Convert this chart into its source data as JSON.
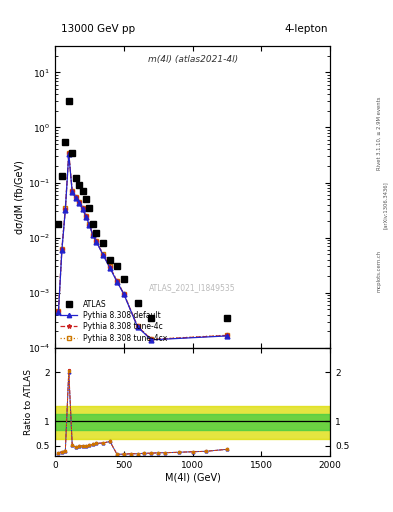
{
  "title_top": "13000 GeV pp",
  "title_right": "4-lepton",
  "plot_label": "m(4l) (atlas2021-4l)",
  "watermark": "ATLAS_2021_I1849535",
  "ylabel_main": "dσ/dM (fb/GeV)",
  "ylabel_ratio": "Ratio to ATLAS",
  "xlabel": "M(4l) (GeV)",
  "right_label_top": "Rivet 3.1.10, ≥ 2.9M events",
  "right_label_mid": "[arXiv:1306.3436]",
  "right_label_bot": "mcplots.cern.ch",
  "xlim": [
    0,
    2000
  ],
  "ylim_main": [
    0.0001,
    30
  ],
  "ylim_ratio": [
    0.3,
    2.5
  ],
  "atlas_data_x": [
    25,
    50,
    75,
    100,
    125,
    150,
    175,
    200,
    225,
    250,
    275,
    300,
    350,
    400,
    450,
    500,
    600,
    700,
    1250
  ],
  "atlas_data_y": [
    0.018,
    0.13,
    0.55,
    3.0,
    0.35,
    0.12,
    0.09,
    0.07,
    0.05,
    0.035,
    0.018,
    0.012,
    0.008,
    0.004,
    0.003,
    0.0018,
    0.00065,
    0.00035,
    0.00035
  ],
  "pythia_default_x": [
    25,
    50,
    75,
    100,
    125,
    150,
    175,
    200,
    225,
    250,
    275,
    300,
    350,
    400,
    450,
    500,
    600,
    700,
    1250
  ],
  "pythia_default_y": [
    0.00045,
    0.006,
    0.032,
    0.33,
    0.068,
    0.053,
    0.043,
    0.033,
    0.024,
    0.017,
    0.011,
    0.0085,
    0.0048,
    0.0028,
    0.0016,
    0.00095,
    0.00024,
    0.00014,
    0.000165
  ],
  "pythia_4c_x": [
    25,
    50,
    75,
    100,
    125,
    150,
    175,
    200,
    225,
    250,
    275,
    300,
    350,
    400,
    450,
    500,
    600,
    700,
    1250
  ],
  "pythia_4c_y": [
    0.00046,
    0.0062,
    0.033,
    0.34,
    0.069,
    0.054,
    0.044,
    0.034,
    0.0245,
    0.0172,
    0.0112,
    0.0086,
    0.0049,
    0.0029,
    0.00162,
    0.00096,
    0.000245,
    0.000142,
    0.000168
  ],
  "pythia_4cx_x": [
    25,
    50,
    75,
    100,
    125,
    150,
    175,
    200,
    225,
    250,
    275,
    300,
    350,
    400,
    450,
    500,
    600,
    700,
    1250
  ],
  "pythia_4cx_y": [
    0.00047,
    0.0063,
    0.034,
    0.345,
    0.0695,
    0.0545,
    0.0445,
    0.0345,
    0.0248,
    0.0174,
    0.0113,
    0.0087,
    0.005,
    0.003,
    0.00165,
    0.00097,
    0.000248,
    0.000143,
    0.00017
  ],
  "ratio_default_x": [
    25,
    50,
    75,
    100,
    125,
    150,
    175,
    200,
    225,
    250,
    275,
    300,
    350,
    400,
    450,
    500,
    550,
    600,
    650,
    700,
    750,
    800,
    900,
    1000,
    1100,
    1250
  ],
  "ratio_default_y": [
    0.36,
    0.38,
    0.4,
    2.0,
    0.52,
    0.47,
    0.5,
    0.5,
    0.5,
    0.51,
    0.53,
    0.55,
    0.56,
    0.59,
    0.33,
    0.33,
    0.34,
    0.34,
    0.35,
    0.35,
    0.36,
    0.36,
    0.37,
    0.38,
    0.39,
    0.43
  ],
  "ratio_4c_x": [
    25,
    50,
    75,
    100,
    125,
    150,
    175,
    200,
    225,
    250,
    275,
    300,
    350,
    400,
    450,
    500,
    550,
    600,
    650,
    700,
    750,
    800,
    900,
    1000,
    1100,
    1250
  ],
  "ratio_4c_y": [
    0.36,
    0.38,
    0.4,
    2.05,
    0.52,
    0.47,
    0.5,
    0.5,
    0.5,
    0.51,
    0.53,
    0.55,
    0.56,
    0.59,
    0.33,
    0.33,
    0.34,
    0.34,
    0.35,
    0.35,
    0.36,
    0.36,
    0.37,
    0.38,
    0.39,
    0.43
  ],
  "ratio_4cx_x": [
    25,
    50,
    75,
    100,
    125,
    150,
    175,
    200,
    225,
    250,
    275,
    300,
    350,
    400,
    450,
    500,
    550,
    600,
    650,
    700,
    750,
    800,
    900,
    1000,
    1100,
    1250
  ],
  "ratio_4cx_y": [
    0.36,
    0.38,
    0.4,
    2.02,
    0.52,
    0.47,
    0.5,
    0.5,
    0.5,
    0.51,
    0.53,
    0.55,
    0.56,
    0.59,
    0.33,
    0.33,
    0.34,
    0.34,
    0.35,
    0.35,
    0.36,
    0.36,
    0.37,
    0.38,
    0.39,
    0.43
  ],
  "green_band_lo": 0.82,
  "green_band_hi": 1.16,
  "yellow_band_lo": 0.65,
  "yellow_band_hi": 1.32,
  "color_default": "#2222cc",
  "color_4c": "#cc2222",
  "color_4cx": "#cc7700",
  "color_atlas": "#000000",
  "color_green": "#44cc44",
  "color_yellow": "#dddd00",
  "bg_color": "#ffffff"
}
